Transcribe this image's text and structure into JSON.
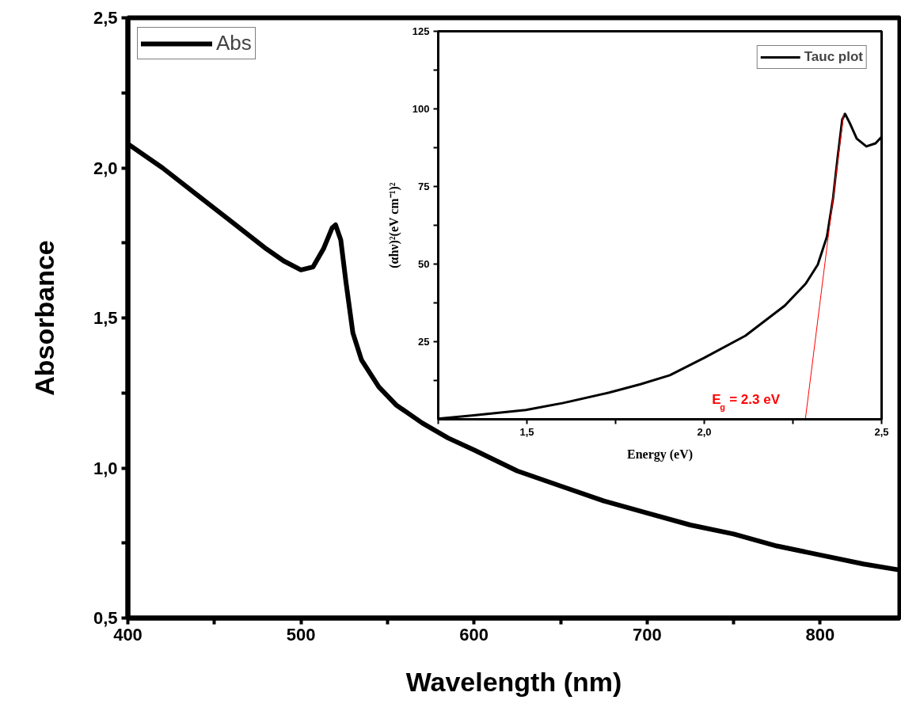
{
  "chart_data": [
    {
      "type": "line",
      "xlabel": "Wavelength (nm)",
      "ylabel": "Absorbance",
      "legend": "top left",
      "grid": false,
      "xlim": [
        400,
        846
      ],
      "ylim": [
        0.5,
        2.5
      ],
      "xticks": [
        400,
        {
          "value": 450,
          "label": null
        },
        500,
        {
          "value": 550,
          "label": null
        },
        600,
        {
          "value": 650,
          "label": null
        },
        700,
        {
          "value": 750,
          "label": null
        },
        800
      ],
      "yticks": [
        {
          "value": 0.5,
          "label": "0,5"
        },
        {
          "value": 0.75,
          "label": null
        },
        {
          "value": 1.0,
          "label": "1,0"
        },
        {
          "value": 1.25,
          "label": null
        },
        {
          "value": 1.5,
          "label": "1,5"
        },
        {
          "value": 1.75,
          "label": null
        },
        {
          "value": 2.0,
          "label": "2,0"
        },
        {
          "value": 2.25,
          "label": null
        },
        {
          "value": 2.5,
          "label": "2,5"
        }
      ],
      "series": [
        {
          "name": "Abs",
          "color": "#000000",
          "x": [
            400,
            420,
            440,
            460,
            480,
            490,
            500,
            507,
            513,
            518,
            520,
            523,
            526,
            530,
            535,
            545,
            555,
            570,
            585,
            600,
            625,
            650,
            675,
            700,
            725,
            750,
            775,
            800,
            825,
            846
          ],
          "values": [
            2.08,
            2.0,
            1.91,
            1.82,
            1.73,
            1.69,
            1.66,
            1.67,
            1.73,
            1.8,
            1.81,
            1.76,
            1.62,
            1.45,
            1.36,
            1.27,
            1.21,
            1.15,
            1.1,
            1.06,
            0.99,
            0.94,
            0.89,
            0.85,
            0.81,
            0.78,
            0.74,
            0.71,
            0.68,
            0.66
          ]
        }
      ]
    },
    {
      "type": "line",
      "xlabel": "Energy (eV)",
      "ylabel": "(αhν)²(eV cm⁻¹)²",
      "legend": "top right",
      "grid": false,
      "xlim": [
        1.25,
        2.5
      ],
      "ylim": [
        0,
        125
      ],
      "xticks": [
        {
          "value": 1.25,
          "label": null
        },
        {
          "value": 1.5,
          "label": "1,5"
        },
        {
          "value": 1.75,
          "label": null
        },
        {
          "value": 2.0,
          "label": "2,0"
        },
        {
          "value": 2.25,
          "label": null
        },
        {
          "value": 2.5,
          "label": "2,5"
        }
      ],
      "yticks": [
        {
          "value": 12.5,
          "label": null
        },
        25,
        {
          "value": 37.5,
          "label": null
        },
        50,
        {
          "value": 62.5,
          "label": null
        },
        75,
        {
          "value": 87.5,
          "label": null
        },
        100,
        {
          "value": 112.5,
          "label": null
        },
        125
      ],
      "annotations": [
        {
          "text": "E$_{g}$ = 2.3 eV",
          "x": 2.285,
          "y": 0
        }
      ],
      "series": [
        {
          "name": "Tauc plot",
          "color": "#000000",
          "x": [
            1.25,
            1.35,
            1.497,
            1.6,
            1.732,
            1.82,
            1.903,
            2.0,
            2.116,
            2.227,
            2.286,
            2.32,
            2.346,
            2.363,
            2.376,
            2.389,
            2.397,
            2.41,
            2.43,
            2.457,
            2.483,
            2.5
          ],
          "values": [
            0.2,
            1.3,
            3.0,
            5.2,
            8.6,
            11.3,
            14.2,
            19.8,
            26.9,
            36.6,
            43.7,
            49.8,
            58.9,
            71.1,
            84.3,
            96.5,
            98.4,
            95.5,
            90.4,
            87.9,
            88.9,
            91.0
          ]
        },
        {
          "type": "line",
          "color": "#ff0000",
          "x": [
            2.393,
            2.285
          ],
          "values": [
            98.4,
            0
          ]
        }
      ]
    }
  ]
}
